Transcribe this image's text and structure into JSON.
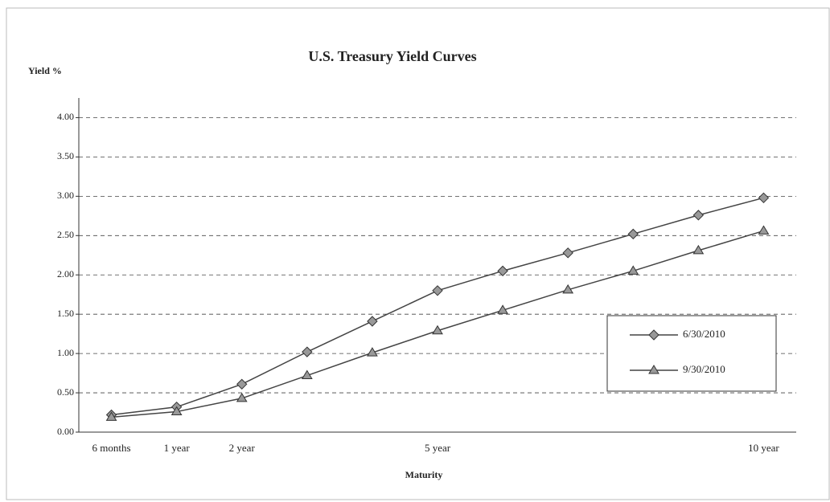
{
  "chart_data": {
    "type": "line",
    "title": "U.S. Treasury Yield Curves",
    "y_label": "Yield %",
    "x_label": "Maturity",
    "categories": [
      "6 months",
      "1 year",
      "2 year",
      null,
      null,
      "5 year",
      null,
      null,
      null,
      null,
      "10 year"
    ],
    "series": [
      {
        "name": "6/30/2010",
        "color": "#444444",
        "marker": "diamond",
        "values": [
          0.22,
          0.32,
          0.61,
          1.02,
          1.41,
          1.8,
          2.05,
          2.28,
          2.52,
          2.76,
          2.98
        ]
      },
      {
        "name": "9/30/2010",
        "color": "#444444",
        "marker": "triangle",
        "values": [
          0.19,
          0.26,
          0.43,
          0.72,
          1.01,
          1.29,
          1.55,
          1.81,
          2.05,
          2.31,
          2.56
        ]
      }
    ],
    "ylim": [
      0,
      4.25
    ],
    "yticks": [
      {
        "value": 0,
        "label": "0.00"
      },
      {
        "value": 0.5,
        "label": "0.50"
      },
      {
        "value": 1,
        "label": "1.00"
      },
      {
        "value": 1.5,
        "label": "1.50"
      },
      {
        "value": 2,
        "label": "2.00"
      },
      {
        "value": 2.5,
        "label": "2.50"
      },
      {
        "value": 3,
        "label": "3.00"
      },
      {
        "value": 3.5,
        "label": "3.50"
      },
      {
        "value": 4,
        "label": "4.00"
      }
    ],
    "grid": true,
    "legend": "right"
  }
}
